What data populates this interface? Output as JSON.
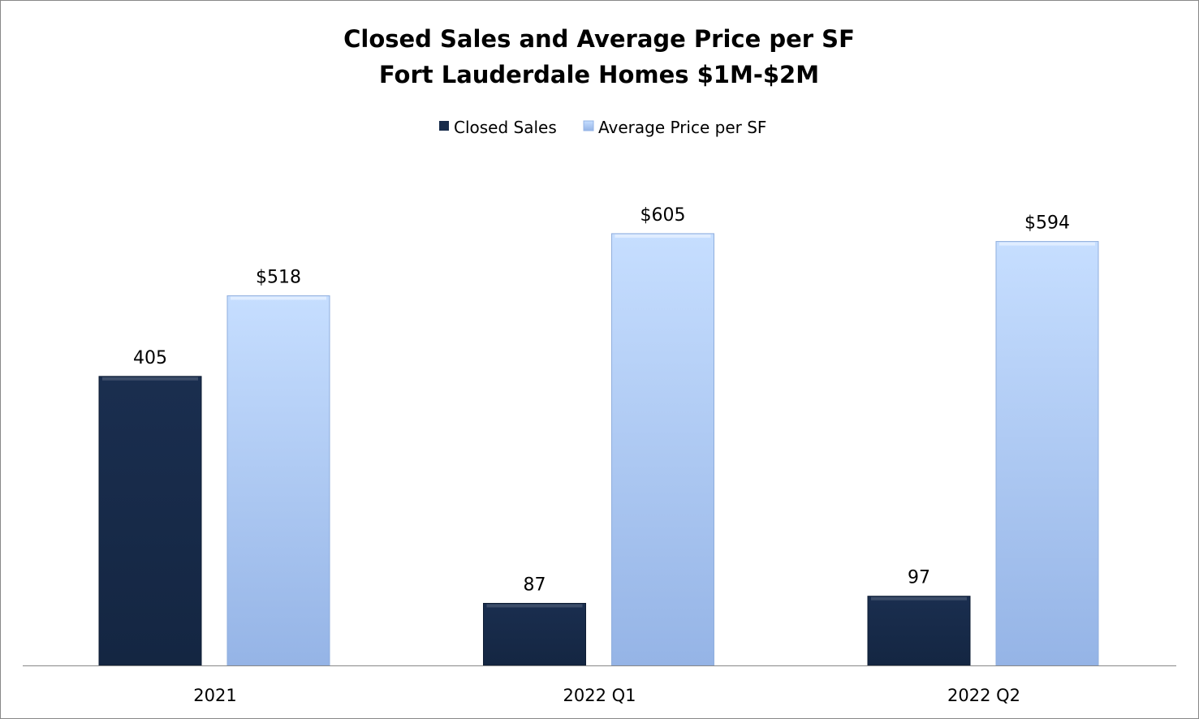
{
  "chart_data": {
    "type": "bar",
    "title": [
      "Closed Sales and Average Price per SF",
      "Fort Lauderdale Homes $1M-$2M"
    ],
    "categories": [
      "2021",
      "2022 Q1",
      "2022 Q2"
    ],
    "series": [
      {
        "name": "Closed Sales",
        "values": [
          405,
          87,
          97
        ],
        "labels": [
          "405",
          "87",
          "97"
        ],
        "color": "#172B4A"
      },
      {
        "name": "Average Price per SF",
        "values": [
          518,
          605,
          594
        ],
        "labels": [
          "$518",
          "$605",
          "$594"
        ],
        "color": "#B4CFF7"
      }
    ],
    "xlabel": "",
    "ylabel": "",
    "ylim": [
      0,
      700
    ],
    "grid": false,
    "legend": "top-center"
  }
}
